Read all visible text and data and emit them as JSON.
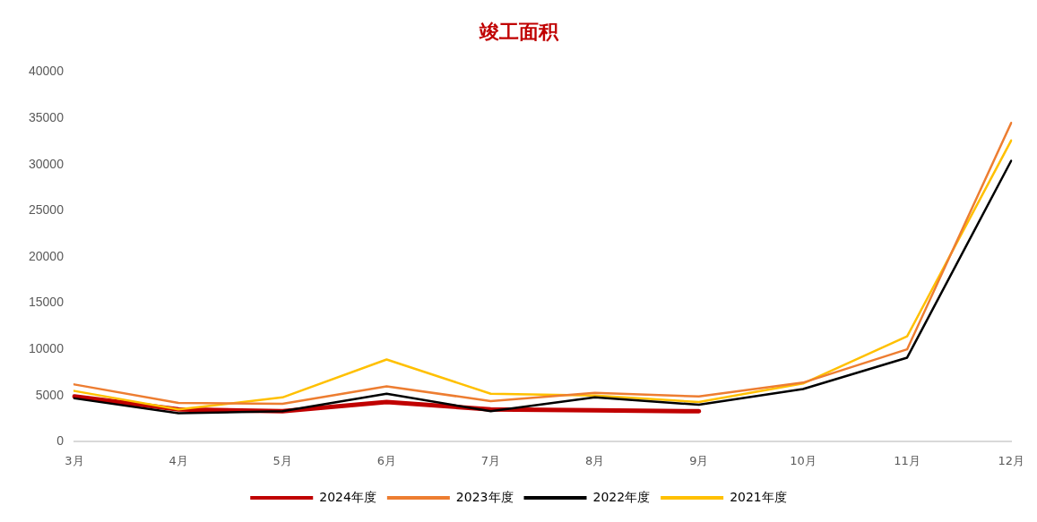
{
  "chart_data": {
    "type": "line",
    "title": "竣工面积",
    "categories": [
      "3月",
      "4月",
      "5月",
      "6月",
      "7月",
      "8月",
      "9月",
      "10月",
      "11月",
      "12月"
    ],
    "series": [
      {
        "name": "2024年度",
        "color": "#c00000",
        "values": [
          4900,
          3500,
          3300,
          4300,
          3500,
          3400,
          3300,
          null,
          null,
          null
        ]
      },
      {
        "name": "2023年度",
        "color": "#ed7d31",
        "values": [
          6200,
          4200,
          4100,
          6000,
          4400,
          5300,
          4900,
          6400,
          10000,
          34500
        ]
      },
      {
        "name": "2022年度",
        "color": "#000000",
        "values": [
          4700,
          3100,
          3300,
          5200,
          3300,
          4800,
          4000,
          5700,
          9100,
          30400
        ]
      },
      {
        "name": "2021年度",
        "color": "#ffc000",
        "values": [
          5500,
          3500,
          4800,
          8900,
          5200,
          5000,
          4300,
          6300,
          11400,
          32600
        ]
      }
    ],
    "ylim": [
      0,
      40000
    ],
    "yticks": [
      0,
      5000,
      10000,
      15000,
      20000,
      25000,
      30000,
      35000,
      40000
    ],
    "grid": false,
    "legend": "bottom",
    "marker": "none",
    "line_style": "solid"
  }
}
